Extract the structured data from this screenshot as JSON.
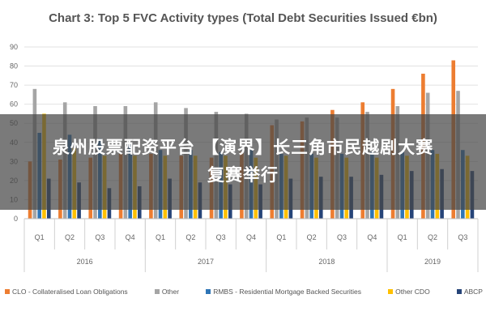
{
  "chart_data": {
    "type": "bar",
    "title": "Chart 3: Top 5 FVC Activity types (Total Debt Securities Issued €bn)",
    "xlabel": "",
    "ylabel": "",
    "ylim": [
      0,
      90
    ],
    "yticks": [
      0,
      10,
      20,
      30,
      40,
      50,
      60,
      70,
      80,
      90
    ],
    "categories": [
      "Q1",
      "Q2",
      "Q3",
      "Q4",
      "Q1",
      "Q2",
      "Q3",
      "Q4",
      "Q1",
      "Q2",
      "Q3",
      "Q4",
      "Q1",
      "Q2",
      "Q3"
    ],
    "groups": [
      {
        "label": "2016",
        "count": 4
      },
      {
        "label": "2017",
        "count": 4
      },
      {
        "label": "2018",
        "count": 4
      },
      {
        "label": "2019",
        "count": 3
      }
    ],
    "grid": true,
    "legend_position": "bottom",
    "series": [
      {
        "name": "CLO - Collateralised Loan Obligations",
        "color": "#ED7D31",
        "values": [
          30,
          31,
          32,
          34,
          34,
          33,
          32,
          35,
          49,
          51,
          57,
          61,
          68,
          76,
          83
        ]
      },
      {
        "name": "Other",
        "color": "#A5A5A5",
        "values": [
          68,
          61,
          59,
          59,
          61,
          58,
          56,
          55,
          52,
          53,
          53,
          56,
          59,
          66,
          67
        ]
      },
      {
        "name": "RMBS - Residential Mortgage Backed Securities",
        "color": "#2E75B6",
        "values": [
          45,
          44,
          42,
          39,
          36,
          36,
          35,
          36,
          34,
          34,
          34,
          35,
          35,
          36,
          36
        ]
      },
      {
        "name": "Other CDO",
        "color": "#FFC000",
        "values": [
          55,
          37,
          33,
          33,
          33,
          33,
          33,
          32,
          33,
          32,
          32,
          32,
          33,
          34,
          33
        ]
      },
      {
        "name": "ABCP",
        "color": "#264478",
        "values": [
          21,
          19,
          16,
          17,
          21,
          19,
          18,
          18,
          21,
          22,
          22,
          23,
          25,
          26,
          25
        ]
      }
    ]
  },
  "overlay": {
    "line1": "泉州股票配资平台 【演界】长三角市民越剧大赛",
    "line2": "复赛举行"
  }
}
